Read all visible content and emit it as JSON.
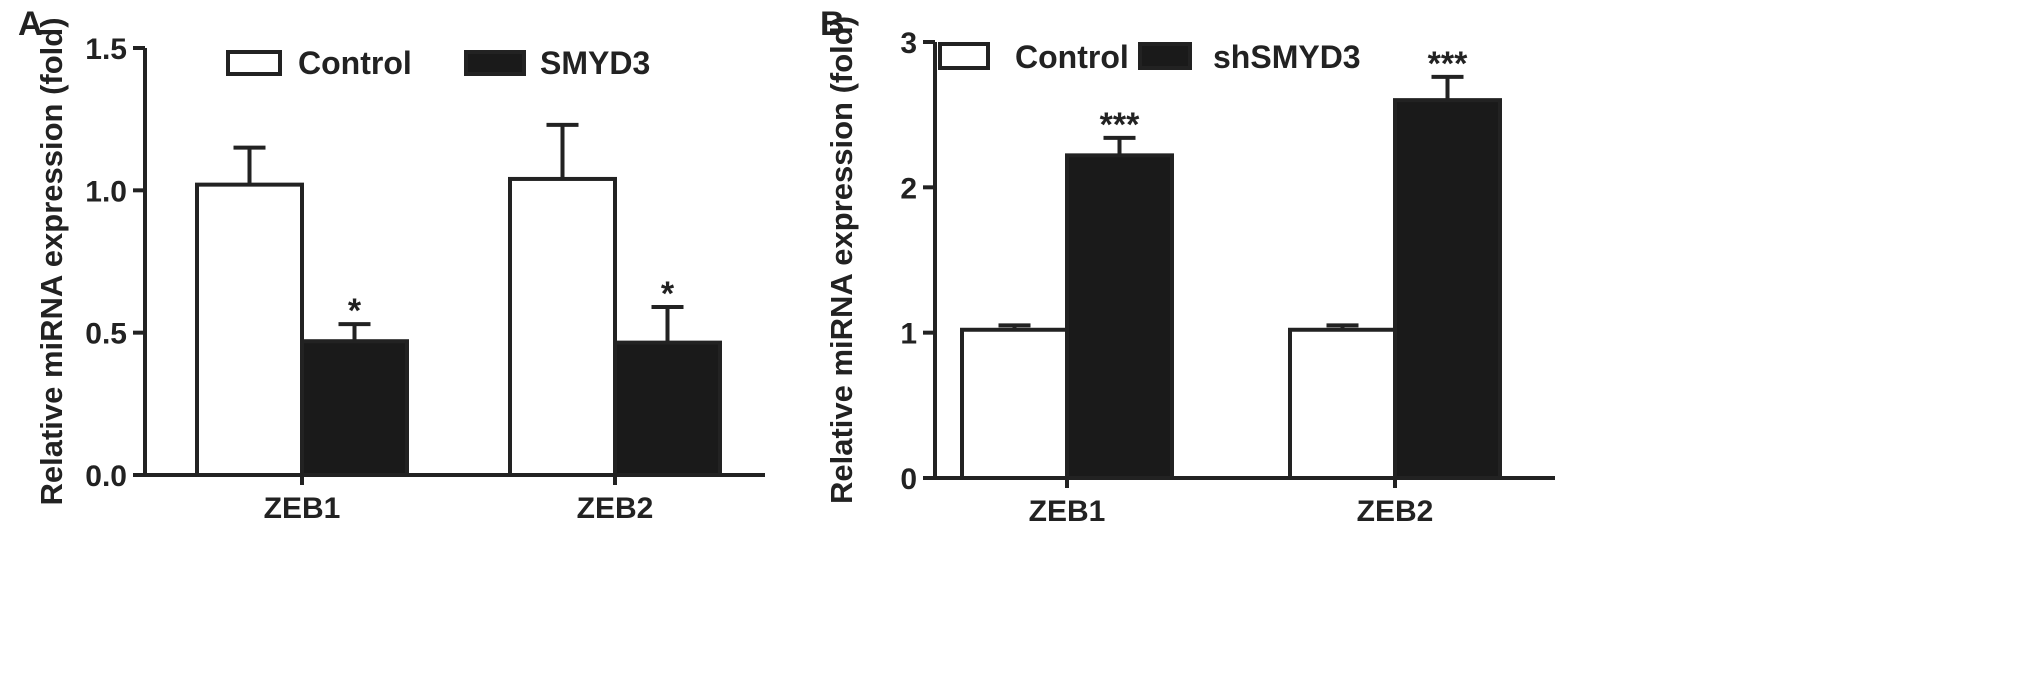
{
  "chart_data": [
    {
      "type": "bar",
      "panel_label": "A",
      "categories": [
        "ZEB1",
        "ZEB2"
      ],
      "series": [
        {
          "name": "Control",
          "values": [
            1.02,
            1.04
          ],
          "errors": [
            0.13,
            0.19
          ],
          "color": "#ffffff"
        },
        {
          "name": "SMYD3",
          "values": [
            0.47,
            0.465
          ],
          "errors": [
            0.06,
            0.125
          ],
          "color": "#1a1a1a"
        }
      ],
      "significance": [
        {
          "series": 1,
          "category": 0,
          "label": "*"
        },
        {
          "series": 1,
          "category": 1,
          "label": "*"
        }
      ],
      "ylabel": "Relative miRNA expression (fold)",
      "ylim": [
        0,
        1.5
      ],
      "yticks": [
        "0.0",
        "0.5",
        "1.0",
        "1.5"
      ],
      "legend_position": "top"
    },
    {
      "type": "bar",
      "panel_label": "B",
      "categories": [
        "ZEB1",
        "ZEB2"
      ],
      "series": [
        {
          "name": "Control",
          "values": [
            1.02,
            1.02
          ],
          "errors": [
            0.03,
            0.03
          ],
          "color": "#ffffff"
        },
        {
          "name": "shSMYD3",
          "values": [
            2.22,
            2.6
          ],
          "errors": [
            0.12,
            0.16
          ],
          "color": "#1a1a1a"
        }
      ],
      "significance": [
        {
          "series": 1,
          "category": 0,
          "label": "***"
        },
        {
          "series": 1,
          "category": 1,
          "label": "***"
        }
      ],
      "ylabel": "Relative miRNA expression (fold)",
      "ylim": [
        0,
        3
      ],
      "yticks": [
        "0",
        "1",
        "2",
        "3"
      ],
      "legend_position": "top"
    }
  ]
}
